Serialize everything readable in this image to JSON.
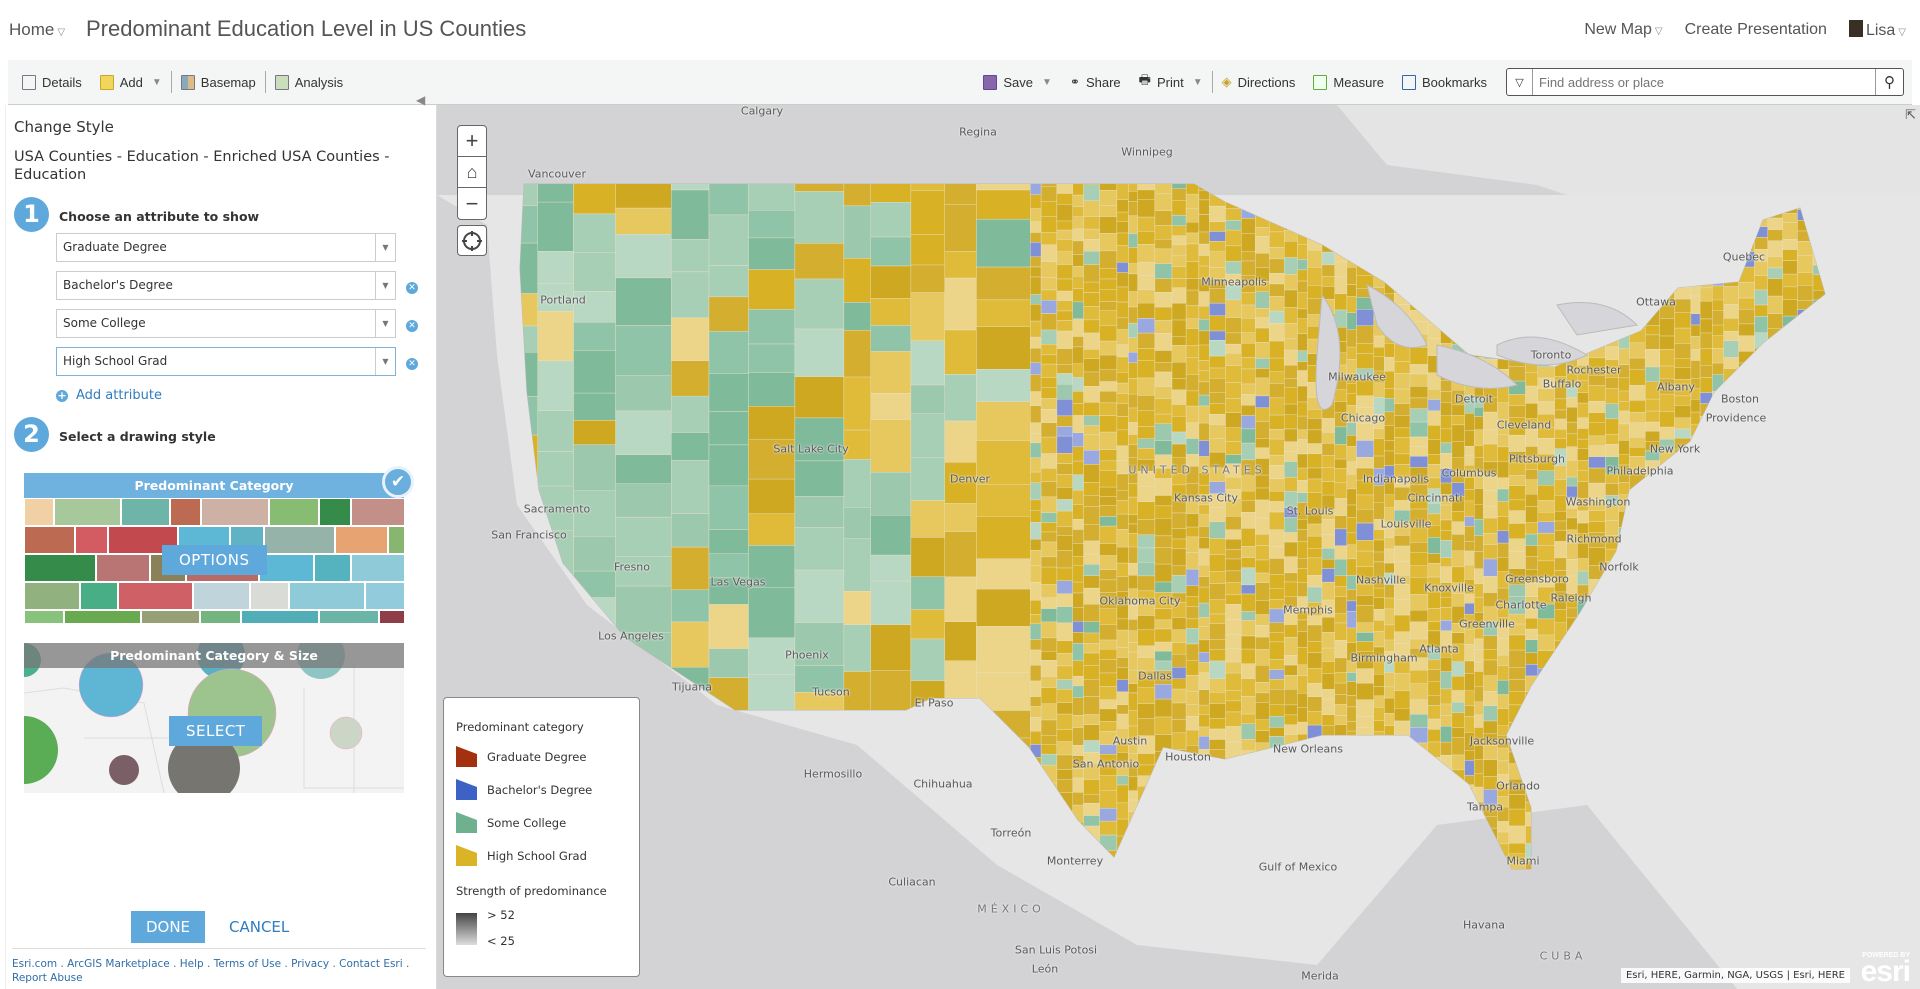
{
  "header": {
    "home": "Home",
    "title": "Predominant Education Level in US Counties",
    "new_map": "New Map",
    "create_presentation": "Create Presentation",
    "user": "Lisa"
  },
  "toolbar": {
    "details": "Details",
    "add": "Add",
    "basemap": "Basemap",
    "analysis": "Analysis",
    "save": "Save",
    "share": "Share",
    "print": "Print",
    "directions": "Directions",
    "measure": "Measure",
    "bookmarks": "Bookmarks",
    "search_placeholder": "Find address or place"
  },
  "panel": {
    "title": "Change Style",
    "layer": "USA Counties - Education - Enriched USA Counties - Education",
    "step1": {
      "num": "1",
      "heading": "Choose an attribute to show",
      "attributes": [
        "Graduate Degree",
        "Bachelor's Degree",
        "Some College",
        "High School Grad"
      ],
      "add_label": "Add attribute"
    },
    "step2": {
      "num": "2",
      "heading": "Select a drawing style",
      "styles": [
        {
          "name": "Predominant Category",
          "button": "OPTIONS",
          "selected": true
        },
        {
          "name": "Predominant Category & Size",
          "button": "SELECT",
          "selected": false
        }
      ]
    },
    "done": "DONE",
    "cancel": "CANCEL",
    "footer_links": [
      "Esri.com",
      "ArcGIS Marketplace",
      "Help",
      "Terms of Use",
      "Privacy",
      "Contact Esri",
      "Report Abuse"
    ]
  },
  "legend": {
    "title": "Predominant category",
    "items": [
      {
        "label": "Graduate Degree",
        "color": "#a3310f"
      },
      {
        "label": "Bachelor's Degree",
        "color": "#3c62c6"
      },
      {
        "label": "Some College",
        "color": "#6fb08e"
      },
      {
        "label": "High School Grad",
        "color": "#dab326"
      }
    ],
    "strength_title": "Strength of predominance",
    "strength_high": "> 52",
    "strength_low": "< 25"
  },
  "map": {
    "labels": [
      "Calgary",
      "Regina",
      "Winnipeg",
      "Vancouver",
      "Quebec",
      "Ottawa",
      "Toronto",
      "Rochester",
      "Buffalo",
      "Albany",
      "Boston",
      "Providence",
      "Portland",
      "Minneapolis",
      "Milwaukee",
      "Detroit",
      "Chicago",
      "Cleveland",
      "New York",
      "Salt Lake City",
      "Denver",
      "UNITED STATES",
      "Columbus",
      "Pittsburgh",
      "Philadelphia",
      "Indianapolis",
      "Kansas City",
      "Washington",
      "Cincinnati",
      "St. Louis",
      "Sacramento",
      "San Francisco",
      "Louisville",
      "Richmond",
      "Norfolk",
      "Fresno",
      "Las Vegas",
      "Nashville",
      "Knoxville",
      "Greensboro",
      "Raleigh",
      "Charlotte",
      "Oklahoma City",
      "Memphis",
      "Greenville",
      "Los Angeles",
      "Phoenix",
      "Birmingham",
      "Atlanta",
      "Dallas",
      "Tijuana",
      "Tucson",
      "El Paso",
      "Jacksonville",
      "Austin",
      "Houston",
      "New Orleans",
      "San Antonio",
      "Hermosillo",
      "Chihuahua",
      "Orlando",
      "Tampa",
      "Miami",
      "Torreón",
      "Monterrey",
      "Gulf of Mexico",
      "Culiacan",
      "MÉXICO",
      "Havana",
      "San Luis Potosi",
      "León",
      "CUBA",
      "Merida"
    ],
    "attribution": "Esri, HERE, Garmin, NGA, USGS | Esri, HERE",
    "powered_by": "POWERED BY",
    "esri_logo": "esri"
  }
}
